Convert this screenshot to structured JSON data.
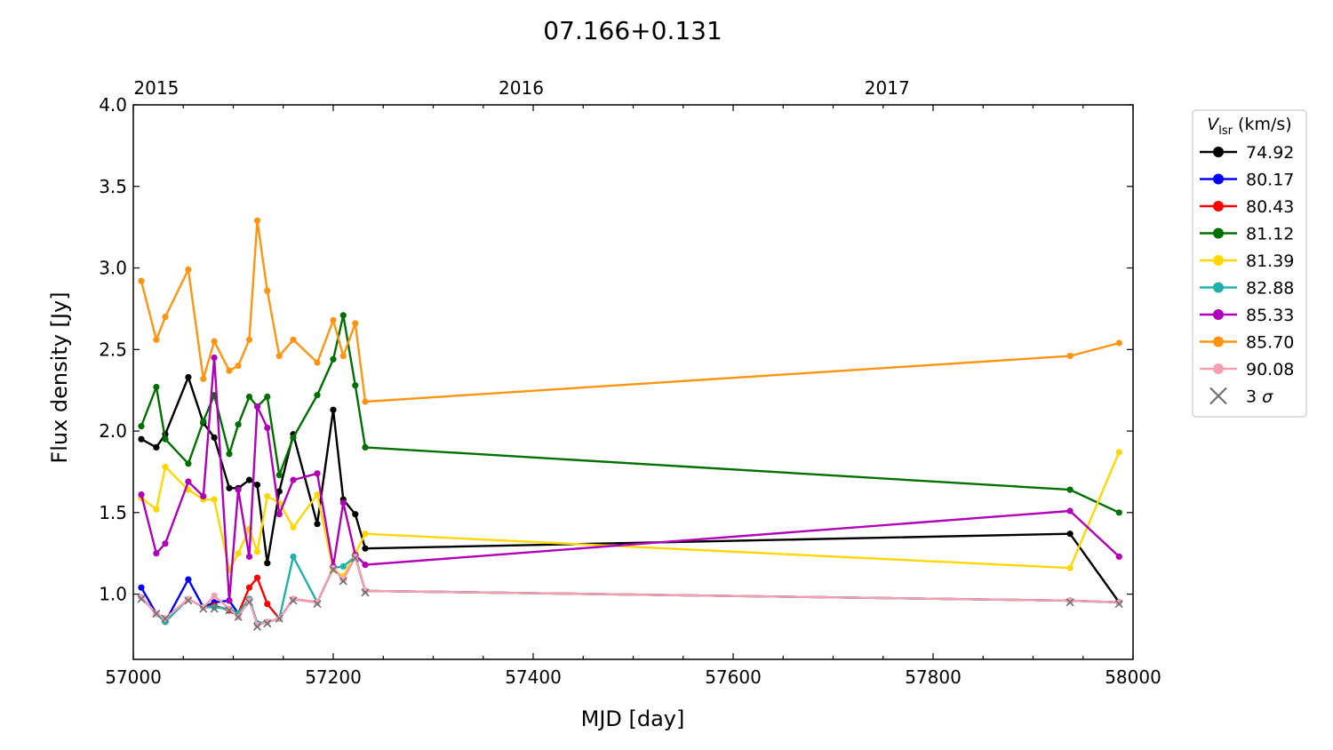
{
  "chart_data": {
    "type": "line",
    "title": "07.166+0.131",
    "xlabel": "MJD [day]",
    "ylabel": "Flux density [Jy]",
    "xlim": [
      57000,
      58000
    ],
    "ylim": [
      0.6,
      4.0
    ],
    "xticks": [
      57000,
      57200,
      57400,
      57600,
      57800,
      58000
    ],
    "xtick_labels": [
      "57000",
      "57200",
      "57400",
      "57600",
      "57800",
      "58000"
    ],
    "yticks": [
      1.0,
      1.5,
      2.0,
      2.5,
      3.0,
      3.5,
      4.0
    ],
    "ytick_labels": [
      "1.0",
      "1.5",
      "2.0",
      "2.5",
      "3.0",
      "3.5",
      "4.0"
    ],
    "top_axis": {
      "ticks": [
        57023,
        57388,
        57754
      ],
      "labels": [
        "2015",
        "2016",
        "2017"
      ]
    },
    "grid": false,
    "legend": {
      "placement": "outside right",
      "title_main": "V",
      "title_sub": "lsr",
      "title_unit": " (km/s)",
      "threesigma_label": "3 σ"
    },
    "series": [
      {
        "name": "74.92",
        "color": "#000000",
        "x": [
          57008,
          57023,
          57032,
          57055,
          57070,
          57081,
          57096,
          57105,
          57116,
          57124,
          57134,
          57146,
          57160,
          57184,
          57200,
          57210,
          57222,
          57232,
          57937,
          57986
        ],
        "y": [
          1.95,
          1.9,
          1.98,
          2.33,
          2.05,
          1.96,
          1.65,
          1.65,
          1.7,
          1.67,
          1.19,
          1.63,
          1.98,
          1.43,
          2.13,
          1.58,
          1.49,
          1.28,
          1.37,
          0.95
        ]
      },
      {
        "name": "80.17",
        "color": "#0000ff",
        "x": [
          57008,
          57023,
          57032,
          57055,
          57070,
          57081,
          57096,
          57105,
          57116,
          57124,
          57134,
          57146,
          57160,
          57184,
          57200,
          57210,
          57222,
          57232,
          57937,
          57986
        ],
        "y": [
          1.04,
          0.88,
          0.83,
          1.09,
          0.92,
          0.95,
          0.96,
          0.88,
          0.97,
          0.82,
          0.83,
          0.85,
          0.97,
          0.95,
          1.16,
          1.09,
          1.23,
          1.02,
          0.96,
          0.95
        ]
      },
      {
        "name": "80.43",
        "color": "#ff0000",
        "x": [
          57008,
          57023,
          57032,
          57055,
          57070,
          57081,
          57096,
          57105,
          57116,
          57124,
          57134,
          57146,
          57160,
          57184,
          57200,
          57210,
          57222,
          57232,
          57937,
          57986
        ],
        "y": [
          0.98,
          0.88,
          0.85,
          0.97,
          0.92,
          0.93,
          0.9,
          0.88,
          1.04,
          1.1,
          0.94,
          0.85,
          0.97,
          0.95,
          1.16,
          1.09,
          1.23,
          1.02,
          0.96,
          0.95
        ]
      },
      {
        "name": "81.12",
        "color": "#007000",
        "x": [
          57008,
          57023,
          57032,
          57055,
          57070,
          57081,
          57096,
          57105,
          57116,
          57124,
          57134,
          57146,
          57160,
          57184,
          57200,
          57210,
          57222,
          57232,
          57937,
          57986
        ],
        "y": [
          2.03,
          2.27,
          1.95,
          1.8,
          2.06,
          2.22,
          1.86,
          2.04,
          2.21,
          2.15,
          2.21,
          1.73,
          1.96,
          2.22,
          2.44,
          2.71,
          2.28,
          1.9,
          1.64,
          1.5
        ]
      },
      {
        "name": "81.39",
        "color": "#ffd700",
        "x": [
          57008,
          57023,
          57032,
          57055,
          57070,
          57081,
          57096,
          57105,
          57116,
          57124,
          57134,
          57146,
          57160,
          57184,
          57200,
          57210,
          57222,
          57232,
          57937,
          57986
        ],
        "y": [
          1.59,
          1.52,
          1.78,
          1.64,
          1.58,
          1.58,
          1.15,
          1.25,
          1.4,
          1.26,
          1.6,
          1.56,
          1.41,
          1.61,
          1.15,
          1.11,
          1.25,
          1.37,
          1.16,
          1.87
        ]
      },
      {
        "name": "82.88",
        "color": "#20b2aa",
        "x": [
          57008,
          57023,
          57032,
          57055,
          57070,
          57081,
          57096,
          57105,
          57116,
          57124,
          57134,
          57146,
          57160,
          57184,
          57200,
          57210,
          57222,
          57232,
          57937,
          57986
        ],
        "y": [
          0.98,
          0.88,
          0.83,
          0.97,
          0.92,
          0.92,
          0.91,
          0.88,
          0.97,
          0.82,
          0.83,
          0.85,
          1.23,
          0.95,
          1.16,
          1.17,
          1.23,
          1.02,
          0.96,
          0.95
        ]
      },
      {
        "name": "85.33",
        "color": "#b000b8",
        "x": [
          57008,
          57023,
          57032,
          57055,
          57070,
          57081,
          57096,
          57105,
          57116,
          57124,
          57134,
          57146,
          57160,
          57184,
          57200,
          57210,
          57222,
          57232,
          57937,
          57986
        ],
        "y": [
          1.61,
          1.25,
          1.31,
          1.69,
          1.6,
          2.45,
          0.96,
          1.64,
          1.23,
          2.15,
          2.02,
          1.49,
          1.7,
          1.74,
          1.17,
          1.56,
          1.24,
          1.18,
          1.51,
          1.23
        ]
      },
      {
        "name": "85.70",
        "color": "#ff9410",
        "x": [
          57008,
          57023,
          57032,
          57055,
          57070,
          57081,
          57096,
          57105,
          57116,
          57124,
          57134,
          57146,
          57160,
          57184,
          57200,
          57210,
          57222,
          57232,
          57937,
          57986
        ],
        "y": [
          2.92,
          2.56,
          2.7,
          2.99,
          2.32,
          2.55,
          2.37,
          2.4,
          2.56,
          3.29,
          2.86,
          2.46,
          2.56,
          2.42,
          2.68,
          2.46,
          2.66,
          2.18,
          2.46,
          2.54
        ]
      },
      {
        "name": "90.08",
        "color": "#f4a0b0",
        "x": [
          57008,
          57023,
          57032,
          57055,
          57070,
          57081,
          57096,
          57105,
          57116,
          57124,
          57134,
          57146,
          57160,
          57184,
          57200,
          57210,
          57222,
          57232,
          57937,
          57986
        ],
        "y": [
          0.98,
          0.88,
          0.85,
          0.97,
          0.92,
          0.99,
          0.91,
          0.86,
          0.96,
          0.81,
          0.83,
          0.85,
          0.97,
          0.95,
          1.16,
          1.09,
          1.23,
          1.02,
          0.96,
          0.95
        ]
      }
    ],
    "threesigma": {
      "name": "3 σ",
      "color": "#707070",
      "x": [
        57008,
        57023,
        57032,
        57055,
        57070,
        57081,
        57096,
        57105,
        57116,
        57124,
        57134,
        57146,
        57160,
        57184,
        57200,
        57210,
        57222,
        57232,
        57937,
        57986
      ],
      "y": [
        0.97,
        0.88,
        0.85,
        0.96,
        0.91,
        0.91,
        0.9,
        0.86,
        0.95,
        0.8,
        0.82,
        0.85,
        0.96,
        0.94,
        1.15,
        1.08,
        1.22,
        1.01,
        0.95,
        0.94
      ]
    }
  }
}
